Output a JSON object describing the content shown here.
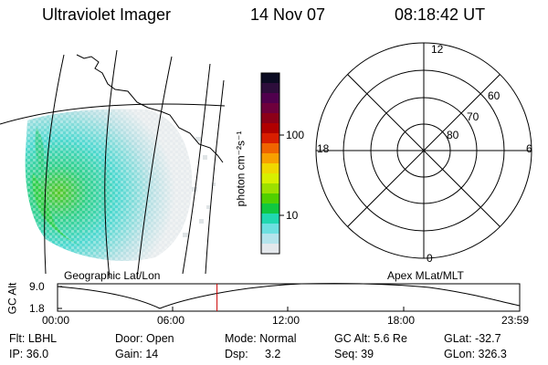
{
  "header": {
    "instrument": "Ultraviolet Imager",
    "date": "14 Nov 07",
    "time": "08:18:42 UT"
  },
  "map_panel": {
    "label": "Geographic Lat/Lon"
  },
  "colorbar": {
    "unit_label": "photon cm⁻²s⁻¹",
    "ticks": [
      "100",
      "10"
    ],
    "colors": [
      "#0b0b22",
      "#2d0d3b",
      "#50004d",
      "#6e003c",
      "#8c0018",
      "#b00000",
      "#d81e00",
      "#f06400",
      "#f8a000",
      "#f0d800",
      "#d8f000",
      "#9ce000",
      "#50d000",
      "#10c840",
      "#20d8b0",
      "#6ce0e0",
      "#b4e4ec",
      "#e4e8ec"
    ]
  },
  "polar_plot": {
    "label": "Apex MLat/MLT",
    "mlt_labels": {
      "top": "12",
      "left": "18",
      "right": "6",
      "bottom": "0"
    },
    "lat_labels": [
      "60",
      "70",
      "80"
    ]
  },
  "altitude_plot": {
    "axis_label": "GC Alt",
    "y_ticks": [
      "9.0",
      "1.8"
    ],
    "x_ticks": [
      "00:00",
      "06:00",
      "12:00",
      "18:00",
      "23:59"
    ],
    "current_time_fraction": 0.345
  },
  "info": {
    "filter": "Flt: LBHL",
    "ip": "IP: 36.0",
    "door": "Door: Open",
    "gain": "Gain: 14",
    "mode": "Mode: Normal",
    "dsp_label": "Dsp:",
    "dsp_value": "3.2",
    "gc_alt": "GC Alt: 5.6 Re",
    "seq": "Seq: 39",
    "glat": "GLat: -32.7",
    "glon": "GLon: 326.3"
  }
}
